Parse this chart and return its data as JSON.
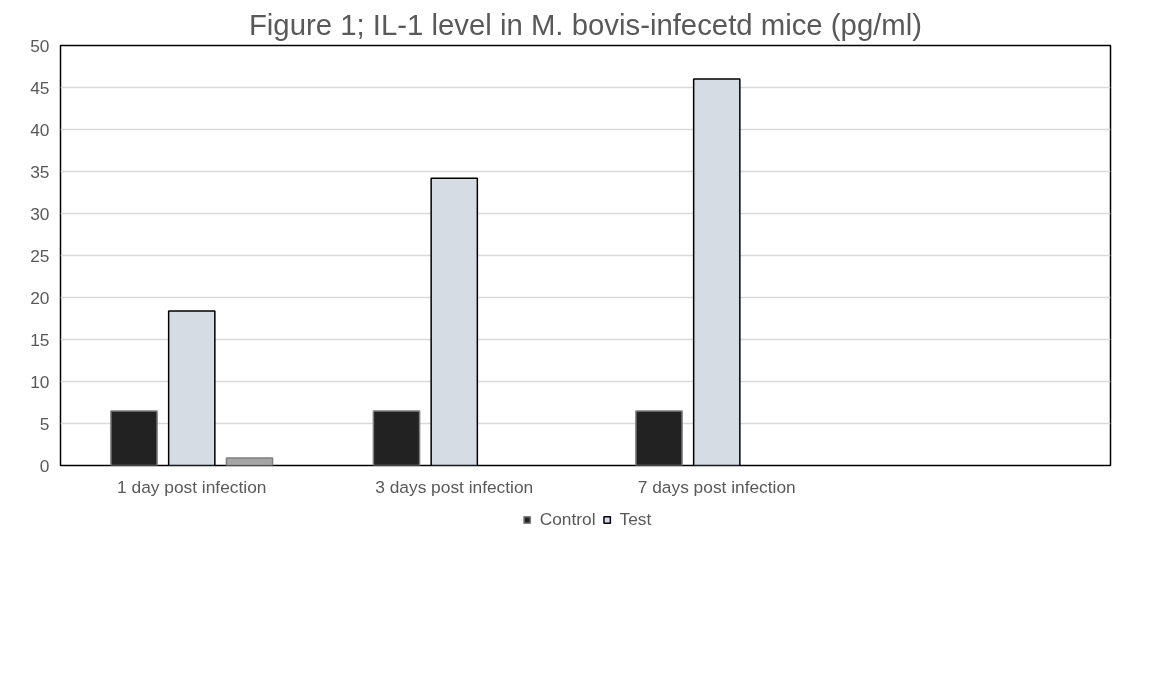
{
  "chart_data": {
    "type": "bar",
    "title": "Figure 1; IL-1 level in M. bovis-infecetd mice (pg/ml)",
    "categories": [
      "1 day post infection",
      "3 days post infection",
      "7 days post infection",
      null
    ],
    "series": [
      {
        "name": "Control",
        "color": "#222222",
        "values": [
          6.5,
          6.5,
          6.5,
          null
        ]
      },
      {
        "name": "Test",
        "color": "#d6dce4",
        "values": [
          18.4,
          34.2,
          46.0,
          null
        ]
      },
      {
        "color": "#a5a5a5",
        "values": [
          0.9,
          null,
          null,
          null
        ]
      }
    ],
    "ylim": [
      0,
      50
    ],
    "yticks": [
      0,
      5,
      10,
      15,
      20,
      25,
      30,
      35,
      40,
      45,
      50
    ],
    "grid": "y",
    "legend": "bottom"
  }
}
